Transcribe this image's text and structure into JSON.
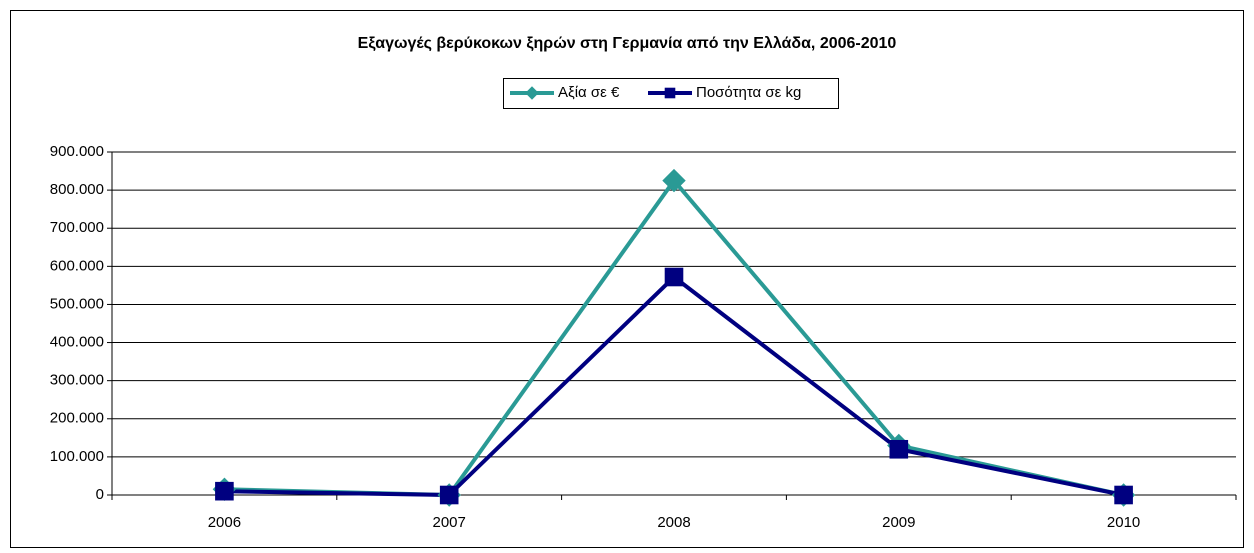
{
  "chart_data": {
    "type": "line",
    "title": "Εξαγωγές βερύκοκων ξηρών στη Γερμανία από την Ελλάδα, 2006-2010",
    "categories": [
      "2006",
      "2007",
      "2008",
      "2009",
      "2010"
    ],
    "series": [
      {
        "name": "Αξία σε €",
        "color": "#2a9a95",
        "marker": "diamond",
        "values": [
          15000,
          0,
          825000,
          130000,
          0
        ]
      },
      {
        "name": "Ποσότητα σε kg",
        "color": "#000080",
        "marker": "square",
        "values": [
          10000,
          0,
          572000,
          120000,
          0
        ]
      }
    ],
    "ylim": [
      0,
      900000
    ],
    "yticks": [
      0,
      {
        "value": 100000,
        "label": "100.000"
      },
      {
        "value": 200000,
        "label": "200.000"
      },
      {
        "value": 300000,
        "label": "300.000"
      },
      {
        "value": 400000,
        "label": "400.000"
      },
      {
        "value": 500000,
        "label": "500.000"
      },
      {
        "value": 600000,
        "label": "600.000"
      },
      {
        "value": 700000,
        "label": "700.000"
      },
      {
        "value": 800000,
        "label": "800.000"
      },
      {
        "value": 900000,
        "label": "900.000"
      }
    ],
    "grid": true,
    "legend": "top"
  }
}
